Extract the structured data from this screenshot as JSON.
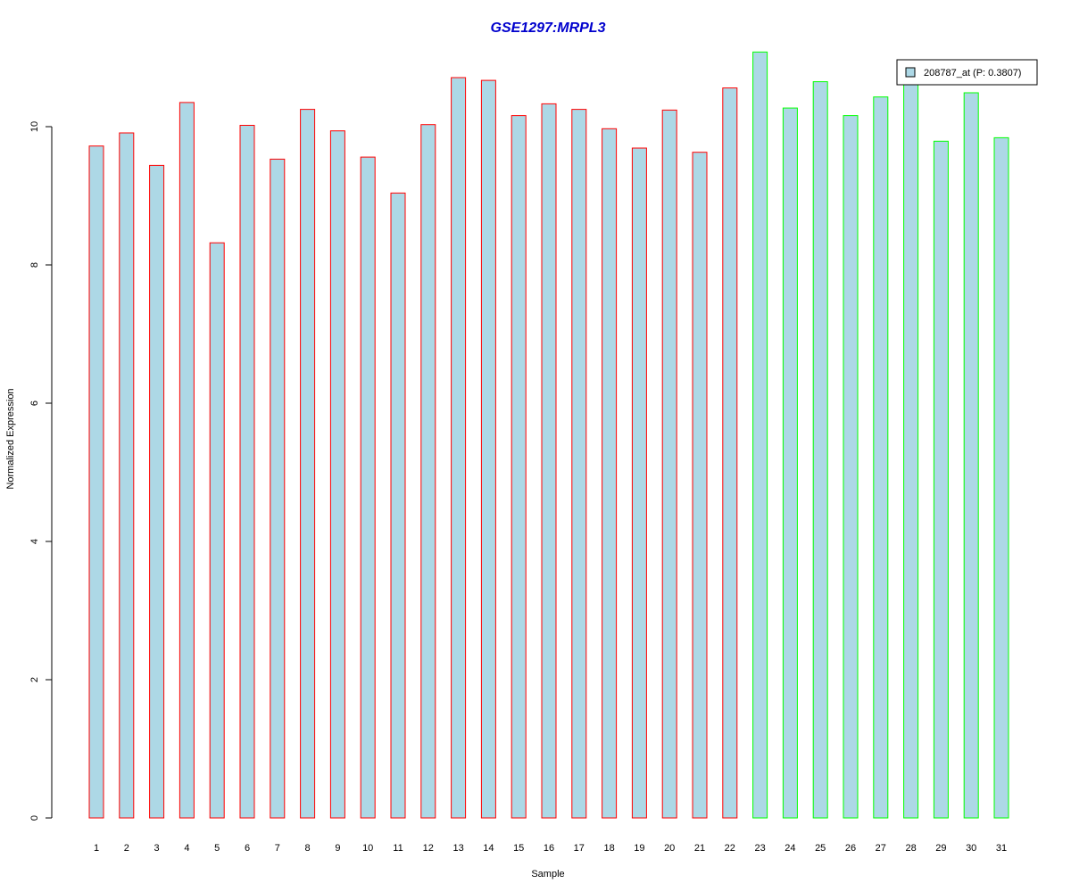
{
  "chart_data": {
    "type": "bar",
    "title": "GSE1297:MRPL3",
    "xlabel": "Sample",
    "ylabel": "Normalized Expression",
    "ylim": [
      0,
      11.2
    ],
    "y_ticks": [
      0,
      2,
      4,
      6,
      8,
      10
    ],
    "grid": false,
    "categories": [
      "1",
      "2",
      "3",
      "4",
      "5",
      "6",
      "7",
      "8",
      "9",
      "10",
      "11",
      "12",
      "13",
      "14",
      "15",
      "16",
      "17",
      "18",
      "19",
      "20",
      "21",
      "22",
      "23",
      "24",
      "25",
      "26",
      "27",
      "28",
      "29",
      "30",
      "31"
    ],
    "values": [
      9.72,
      9.91,
      9.44,
      10.35,
      8.32,
      10.02,
      9.53,
      10.25,
      9.94,
      9.56,
      9.04,
      10.03,
      10.71,
      10.67,
      10.16,
      10.33,
      10.25,
      9.97,
      9.69,
      10.24,
      9.63,
      10.56,
      11.08,
      10.27,
      10.65,
      10.16,
      10.43,
      10.62,
      9.79,
      10.49,
      9.84
    ],
    "groups": [
      "a",
      "a",
      "a",
      "a",
      "a",
      "a",
      "a",
      "a",
      "a",
      "a",
      "a",
      "a",
      "a",
      "a",
      "a",
      "a",
      "a",
      "a",
      "a",
      "a",
      "a",
      "a",
      "b",
      "b",
      "b",
      "b",
      "b",
      "b",
      "b",
      "b",
      "b"
    ],
    "colors": {
      "fill": "#add8e6",
      "group_a_border": "#ff0000",
      "group_b_border": "#00ff00",
      "title": "#0000cd",
      "axis": "#000000"
    },
    "legend": {
      "position": "top-right",
      "entries": [
        {
          "label": "208787_at (P: 0.3807)",
          "color": "#add8e6"
        }
      ]
    }
  }
}
